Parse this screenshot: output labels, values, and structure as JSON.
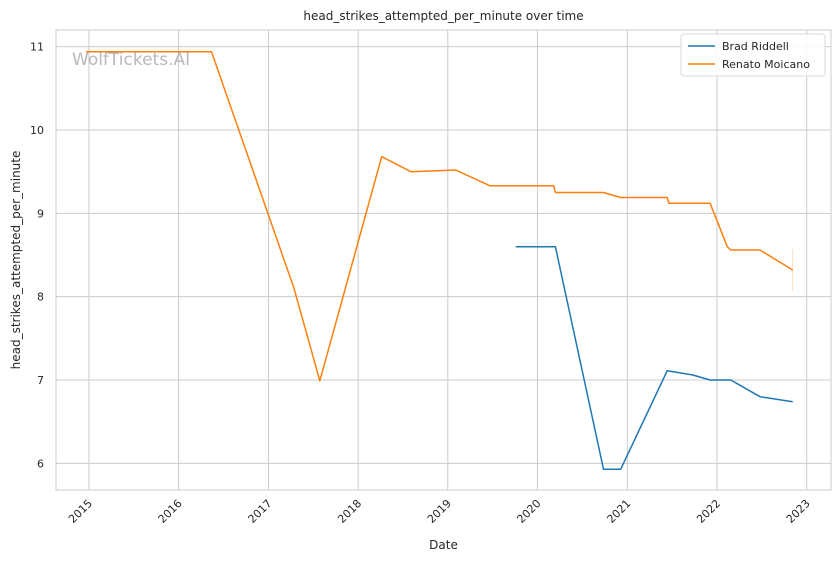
{
  "chart_data": {
    "type": "line",
    "title": "head_strikes_attempted_per_minute over time",
    "xlabel": "Date",
    "ylabel": "head_strikes_attempted_per_minute",
    "watermark": "WolfTickets.AI",
    "x_ticks": [
      "2015",
      "2016",
      "2017",
      "2018",
      "2019",
      "2020",
      "2021",
      "2022",
      "2023"
    ],
    "y_ticks": [
      6,
      7,
      8,
      9,
      10,
      11
    ],
    "xlim": [
      "2014-08-20",
      "2023-04-10"
    ],
    "ylim": [
      5.68,
      11.2
    ],
    "grid": true,
    "legend_position": "top-right",
    "series": [
      {
        "name": "Brad Riddell",
        "color": "#1f77b4",
        "points": [
          {
            "date": "2019-10-05",
            "value": 8.6
          },
          {
            "date": "2020-03-14",
            "value": 8.6
          },
          {
            "date": "2020-09-26",
            "value": 5.93
          },
          {
            "date": "2020-12-05",
            "value": 5.93
          },
          {
            "date": "2021-06-12",
            "value": 7.11
          },
          {
            "date": "2021-09-25",
            "value": 7.06
          },
          {
            "date": "2021-12-04",
            "value": 7.0
          },
          {
            "date": "2022-02-26",
            "value": 7.0
          },
          {
            "date": "2022-06-25",
            "value": 6.8
          },
          {
            "date": "2022-11-05",
            "value": 6.74
          }
        ]
      },
      {
        "name": "Renato Moicano",
        "color": "#ff7f0e",
        "points": [
          {
            "date": "2014-12-20",
            "value": 10.94
          },
          {
            "date": "2016-05-14",
            "value": 10.94
          },
          {
            "date": "2017-04-15",
            "value": 8.1
          },
          {
            "date": "2017-07-29",
            "value": 6.99
          },
          {
            "date": "2018-04-07",
            "value": 9.68
          },
          {
            "date": "2018-08-04",
            "value": 9.5
          },
          {
            "date": "2019-02-02",
            "value": 9.52
          },
          {
            "date": "2019-06-22",
            "value": 9.33
          },
          {
            "date": "2020-03-07",
            "value": 9.33
          },
          {
            "date": "2020-03-14",
            "value": 9.25
          },
          {
            "date": "2020-09-26",
            "value": 9.25
          },
          {
            "date": "2020-12-05",
            "value": 9.19
          },
          {
            "date": "2021-06-12",
            "value": 9.19
          },
          {
            "date": "2021-06-19",
            "value": 9.12
          },
          {
            "date": "2021-12-04",
            "value": 9.12
          },
          {
            "date": "2022-02-12",
            "value": 8.6
          },
          {
            "date": "2022-02-26",
            "value": 8.56
          },
          {
            "date": "2022-06-25",
            "value": 8.56
          },
          {
            "date": "2022-11-05",
            "value": 8.32
          }
        ]
      }
    ]
  }
}
